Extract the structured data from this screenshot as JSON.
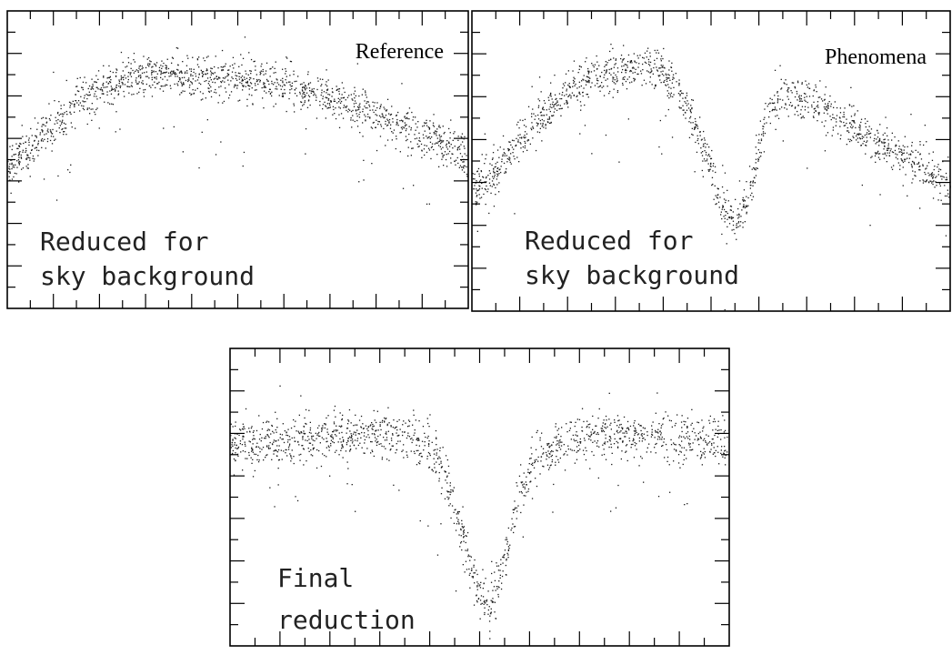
{
  "chart_data": [
    {
      "type": "scatter",
      "title": "",
      "xlabel": "",
      "ylabel": "",
      "grid": false,
      "xlim": [
        0,
        1
      ],
      "ylim": [
        0,
        1
      ],
      "labels": {
        "corner": "Reference",
        "note_line1": "Reduced for",
        "note_line2": "sky background"
      },
      "series": [
        {
          "x": [
            0.0,
            0.05,
            0.1,
            0.15,
            0.2,
            0.25,
            0.3,
            0.35,
            0.4,
            0.45,
            0.5,
            0.55,
            0.6,
            0.65,
            0.7,
            0.75,
            0.8,
            0.85,
            0.9,
            0.95,
            1.0
          ],
          "y": [
            0.47,
            0.54,
            0.62,
            0.69,
            0.74,
            0.77,
            0.78,
            0.79,
            0.79,
            0.78,
            0.77,
            0.76,
            0.75,
            0.73,
            0.71,
            0.69,
            0.65,
            0.62,
            0.58,
            0.55,
            0.49
          ],
          "scatter": 0.035,
          "points": 1500
        }
      ]
    },
    {
      "type": "scatter",
      "title": "",
      "xlabel": "",
      "ylabel": "",
      "grid": false,
      "xlim": [
        0,
        1
      ],
      "ylim": [
        0,
        1
      ],
      "labels": {
        "corner": "Phenomena",
        "note_line1": "Reduced for",
        "note_line2": "sky background"
      },
      "series": [
        {
          "x": [
            0.0,
            0.05,
            0.1,
            0.15,
            0.2,
            0.25,
            0.3,
            0.35,
            0.4,
            0.45,
            0.5,
            0.52,
            0.55,
            0.58,
            0.6,
            0.62,
            0.65,
            0.7,
            0.75,
            0.8,
            0.85,
            0.9,
            0.95,
            1.0
          ],
          "y": [
            0.4,
            0.47,
            0.57,
            0.66,
            0.74,
            0.78,
            0.8,
            0.81,
            0.79,
            0.67,
            0.48,
            0.35,
            0.28,
            0.38,
            0.55,
            0.68,
            0.73,
            0.7,
            0.66,
            0.61,
            0.56,
            0.52,
            0.47,
            0.41
          ],
          "scatter": 0.035,
          "points": 1500
        }
      ]
    },
    {
      "type": "scatter",
      "title": "",
      "xlabel": "",
      "ylabel": "",
      "grid": false,
      "xlim": [
        0,
        1
      ],
      "ylim": [
        0,
        1
      ],
      "labels": {
        "corner": "",
        "note_line1": "Final",
        "note_line2": "reduction"
      },
      "series": [
        {
          "x": [
            0.0,
            0.05,
            0.1,
            0.15,
            0.2,
            0.25,
            0.3,
            0.35,
            0.4,
            0.43,
            0.46,
            0.49,
            0.52,
            0.55,
            0.58,
            0.62,
            0.66,
            0.7,
            0.75,
            0.8,
            0.85,
            0.9,
            0.95,
            1.0
          ],
          "y": [
            0.68,
            0.68,
            0.69,
            0.7,
            0.71,
            0.71,
            0.71,
            0.7,
            0.68,
            0.58,
            0.4,
            0.2,
            0.12,
            0.28,
            0.52,
            0.64,
            0.68,
            0.7,
            0.71,
            0.71,
            0.71,
            0.7,
            0.69,
            0.68
          ],
          "scatter": 0.04,
          "points": 1500
        }
      ]
    }
  ]
}
